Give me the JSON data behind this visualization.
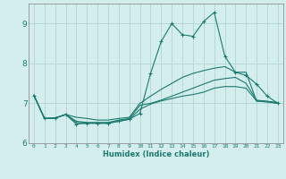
{
  "xlabel": "Humidex (Indice chaleur)",
  "bg_color": "#d4eeee",
  "grid_color": "#b8d8d8",
  "line_color": "#1a7a6e",
  "x": [
    0,
    1,
    2,
    3,
    4,
    5,
    6,
    7,
    8,
    9,
    10,
    11,
    12,
    13,
    14,
    15,
    16,
    17,
    18,
    19,
    20,
    21,
    22,
    23
  ],
  "series": [
    [
      7.2,
      6.62,
      6.63,
      6.72,
      6.65,
      6.62,
      6.58,
      6.58,
      6.62,
      6.65,
      7.0,
      7.18,
      7.35,
      7.5,
      7.65,
      7.75,
      7.82,
      7.88,
      7.92,
      7.78,
      7.78,
      7.05,
      7.05,
      7.02
    ],
    [
      7.2,
      6.62,
      6.63,
      6.72,
      6.55,
      6.52,
      6.52,
      6.52,
      6.58,
      6.62,
      6.95,
      7.0,
      7.08,
      7.18,
      7.28,
      7.38,
      7.48,
      7.58,
      7.62,
      7.65,
      7.5,
      7.08,
      7.05,
      7.0
    ],
    [
      7.2,
      6.62,
      6.63,
      6.72,
      6.52,
      6.5,
      6.5,
      6.5,
      6.55,
      6.6,
      6.85,
      6.98,
      7.06,
      7.12,
      7.18,
      7.22,
      7.28,
      7.38,
      7.42,
      7.42,
      7.38,
      7.06,
      7.03,
      7.0
    ],
    [
      7.2,
      6.62,
      6.63,
      6.72,
      6.48,
      6.5,
      6.5,
      6.5,
      6.55,
      6.6,
      6.75,
      7.75,
      8.55,
      9.0,
      8.72,
      8.68,
      9.05,
      9.28,
      8.18,
      7.78,
      7.7,
      7.48,
      7.18,
      7.0
    ]
  ],
  "ylim": [
    6.0,
    9.5
  ],
  "xlim": [
    -0.5,
    23.5
  ],
  "yticks": [
    6,
    7,
    8,
    9
  ],
  "xticks": [
    0,
    1,
    2,
    3,
    4,
    5,
    6,
    7,
    8,
    9,
    10,
    11,
    12,
    13,
    14,
    15,
    16,
    17,
    18,
    19,
    20,
    21,
    22,
    23
  ]
}
